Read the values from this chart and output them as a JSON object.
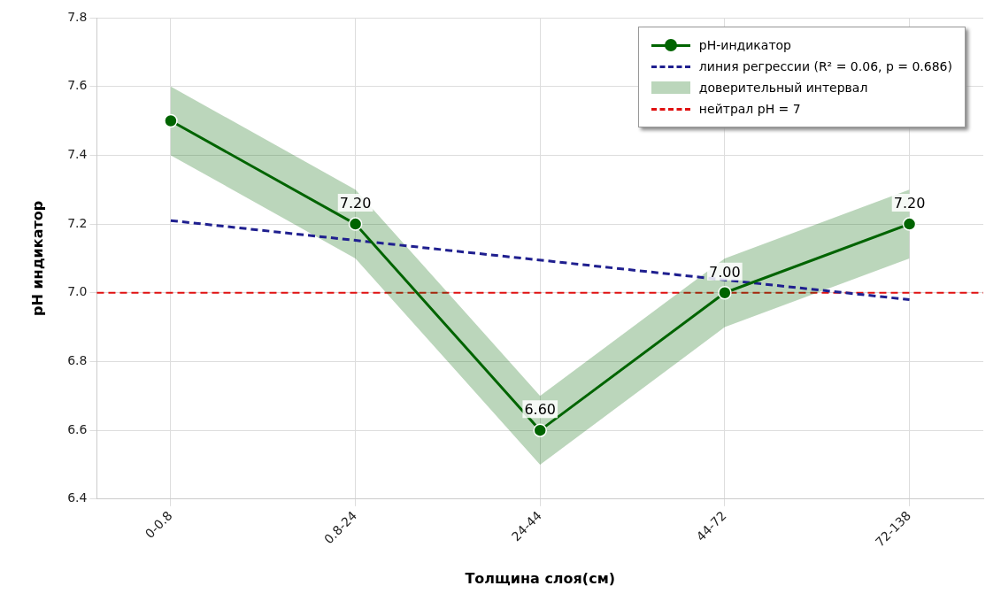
{
  "chart_data": {
    "type": "line",
    "xlabel": "Толщина слоя(см)",
    "ylabel": "pH индикатор",
    "categories": [
      "0-0.8",
      "0.8-24",
      "24-44",
      "44-72",
      "72-138"
    ],
    "ylim": [
      6.4,
      7.8
    ],
    "yticks": [
      {
        "value": 6.4,
        "label": "6.4"
      },
      {
        "value": 6.6,
        "label": "6.6"
      },
      {
        "value": 6.8,
        "label": "6.8"
      },
      {
        "value": 7.0,
        "label": "7.0"
      },
      {
        "value": 7.2,
        "label": "7.2"
      },
      {
        "value": 7.4,
        "label": "7.4"
      },
      {
        "value": 7.6,
        "label": "7.6"
      },
      {
        "value": 7.8,
        "label": "7.8"
      }
    ],
    "series": [
      {
        "name": "pH-индикатор",
        "color": "#006400",
        "values": [
          7.5,
          7.2,
          6.6,
          7.0,
          7.2
        ],
        "lower": [
          7.4,
          7.1,
          6.5,
          6.9,
          7.1
        ],
        "upper": [
          7.6,
          7.3,
          6.7,
          7.1,
          7.3
        ],
        "value_labels": [
          null,
          "7.20",
          "6.60",
          "7.00",
          "7.20"
        ]
      },
      {
        "name": "линия регрессии   (R² = 0.06, p = 0.686)",
        "color": "#1f1f8f",
        "type": "line",
        "x": [
          "0-0.8",
          "72-138"
        ],
        "values": [
          7.21,
          6.98
        ],
        "line_style": "dashed",
        "marker": "none"
      }
    ],
    "annotations": [
      "доверительный интервал"
    ],
    "ref_lines": [
      {
        "axis": "y",
        "value": 7.0,
        "label": "нейтрал  pH = 7",
        "color": "#e01010",
        "line_style": "dashed"
      }
    ],
    "grid": true,
    "legend": "top right",
    "marker": "circle"
  }
}
